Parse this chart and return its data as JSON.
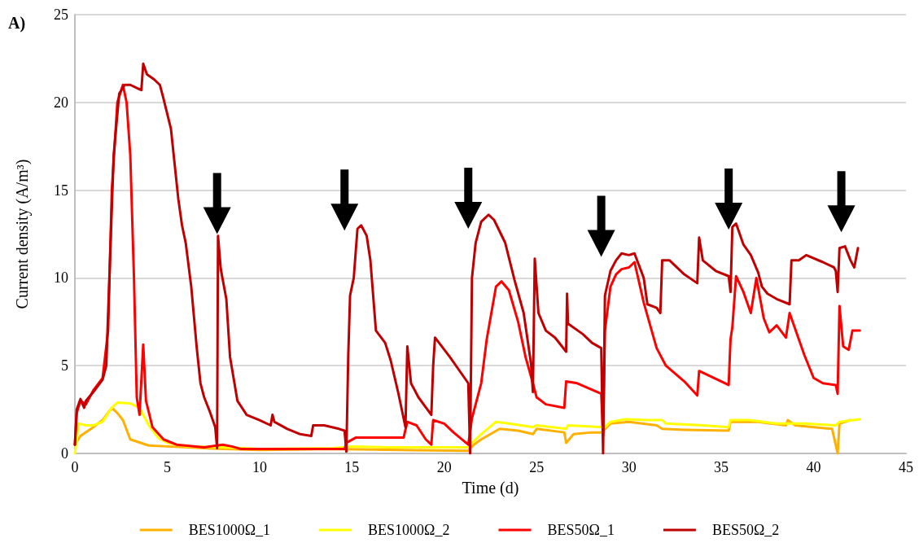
{
  "chart_data": {
    "type": "line",
    "xlabel": "Time (d)",
    "ylabel": "Current density (A/m³)",
    "annotations": [
      "A)"
    ],
    "xlim": [
      0,
      45
    ],
    "xticks": [
      0,
      5,
      10,
      15,
      20,
      25,
      30,
      35,
      40,
      45
    ],
    "ylim": [
      0,
      25
    ],
    "yticks": [
      0,
      5,
      10,
      15,
      20,
      25
    ],
    "grid": "y",
    "legend": "bottom",
    "marker": "none",
    "line_style": "solid",
    "series": [
      {
        "name": "BES1000Ω_1",
        "color": "#ffb000",
        "x": [
          0,
          0.3,
          1,
          1.5,
          2,
          2.3,
          2.6,
          3,
          4,
          5,
          7,
          10,
          14,
          21.3,
          21.6,
          22,
          23,
          24,
          24.8,
          25,
          26.5,
          26.6,
          27,
          28,
          28.6,
          28.7,
          29,
          30,
          31.5,
          31.8,
          33,
          35.4,
          35.5,
          37,
          38.5,
          38.6,
          39,
          41,
          41.3,
          41.4,
          42
        ],
        "values": [
          0.5,
          1,
          1.5,
          1.9,
          2.6,
          2.3,
          1.9,
          0.8,
          0.45,
          0.4,
          0.3,
          0.2,
          0.25,
          0.15,
          0.5,
          0.8,
          1.4,
          1.3,
          1.1,
          1.4,
          1.2,
          0.6,
          1.1,
          1.2,
          1.2,
          1.4,
          1.7,
          1.8,
          1.6,
          1.4,
          1.35,
          1.3,
          1.8,
          1.8,
          1.6,
          1.9,
          1.6,
          1.4,
          0,
          1.7,
          1.9
        ]
      },
      {
        "name": "BES1000Ω_2",
        "color": "#ffff00",
        "x": [
          0,
          0.2,
          0.6,
          1,
          1.5,
          2,
          2.3,
          3,
          3.5,
          4,
          4.5,
          5,
          6,
          8,
          10,
          14,
          15,
          17,
          21.3,
          21.5,
          22,
          22.8,
          23.5,
          24.8,
          25,
          26.6,
          26.7,
          28.6,
          28.7,
          29,
          29.8,
          31,
          31.8,
          32,
          34,
          35.4,
          35.5,
          36.5,
          38,
          39.5,
          41.2,
          41.4,
          42.5
        ],
        "values": [
          0,
          1.7,
          1.6,
          1.6,
          1.8,
          2.6,
          2.9,
          2.85,
          2.6,
          1.6,
          0.9,
          0.6,
          0.4,
          0.35,
          0.25,
          0.3,
          0.4,
          0.35,
          0.35,
          0.6,
          1.1,
          1.8,
          1.7,
          1.5,
          1.6,
          1.4,
          1.6,
          1.5,
          1.5,
          1.8,
          1.95,
          1.9,
          1.9,
          1.7,
          1.6,
          1.5,
          1.9,
          1.9,
          1.7,
          1.7,
          1.6,
          1.8,
          1.95
        ]
      },
      {
        "name": "BES50Ω_1",
        "color": "#ff0000",
        "x": [
          0,
          0.1,
          0.3,
          0.6,
          1,
          1.5,
          1.8,
          2,
          2.3,
          2.6,
          2.8,
          3,
          3.2,
          3.35,
          3.5,
          3.7,
          3.85,
          4.2,
          4.8,
          5.5,
          7,
          8,
          8.5,
          9,
          12,
          14.6,
          14.7,
          15.2,
          17.8,
          18,
          18.5,
          19,
          19.3,
          19.4,
          20,
          20.5,
          21.3,
          21.5,
          22,
          22.3,
          22.8,
          23.1,
          23.5,
          24,
          24.4,
          24.8,
          25,
          25.5,
          26.5,
          26.6,
          27.2,
          28.5,
          28.6,
          28.7,
          29,
          29.3,
          29.6,
          30,
          30.3,
          30.8,
          31.5,
          32,
          33,
          33.7,
          33.8,
          35.4,
          35.5,
          35.6,
          35.8,
          36.2,
          36.6,
          36.9,
          37.3,
          37.6,
          38,
          38.5,
          38.7,
          39,
          39.5,
          40,
          40.5,
          41.2,
          41.3,
          41.4,
          41.6,
          41.9,
          42.1,
          42.5
        ],
        "values": [
          0.5,
          2.3,
          3,
          2.8,
          3.6,
          4.3,
          7,
          15,
          20,
          21,
          20,
          17,
          10,
          3.2,
          2.2,
          6.2,
          3,
          1.5,
          0.8,
          0.5,
          0.35,
          0.5,
          0.4,
          0.25,
          0.25,
          0.25,
          0.6,
          0.9,
          0.9,
          1.8,
          1.6,
          0.8,
          0.5,
          1.9,
          1.7,
          1.2,
          0.5,
          2,
          4,
          6.5,
          9.5,
          9.8,
          9.3,
          7.5,
          5.5,
          4,
          3.2,
          2.8,
          2.6,
          4.1,
          4,
          3.4,
          1,
          7,
          9.5,
          10.2,
          10.5,
          10.6,
          10.9,
          8.6,
          6,
          5,
          4.1,
          3.3,
          4.7,
          3.9,
          6.5,
          7.2,
          10.1,
          9.2,
          8,
          10,
          7.7,
          6.9,
          7.3,
          6.6,
          8,
          7.1,
          5.6,
          4.3,
          4,
          3.9,
          3.4,
          8.4,
          6.1,
          5.9,
          7,
          7
        ]
      },
      {
        "name": "BES50Ω_2",
        "color": "#c00000",
        "x": [
          0,
          0.1,
          0.3,
          0.5,
          0.6,
          1,
          1.5,
          1.7,
          1.9,
          2.1,
          2.4,
          2.7,
          3,
          3.4,
          3.6,
          3.7,
          3.9,
          4.3,
          4.6,
          4.8,
          5.2,
          5.6,
          5.8,
          6,
          6.3,
          6.6,
          6.8,
          7,
          7.3,
          7.6,
          7.7,
          7.75,
          7.9,
          8.2,
          8.4,
          8.8,
          9.3,
          10,
          10.6,
          10.7,
          10.8,
          11.5,
          12.2,
          12.8,
          12.9,
          13.5,
          14.3,
          14.6,
          14.7,
          14.8,
          14.9,
          15.1,
          15.3,
          15.5,
          15.8,
          16,
          16.3,
          16.8,
          17.1,
          17.5,
          17.8,
          17.9,
          18,
          18.2,
          18.6,
          19.3,
          19.4,
          19.5,
          20.3,
          21.3,
          21.4,
          21.5,
          21.7,
          22,
          22.4,
          22.7,
          23.3,
          23.8,
          24.3,
          24.7,
          24.8,
          24.9,
          25.1,
          25.5,
          26,
          26.6,
          26.65,
          26.7,
          27.5,
          28,
          28.5,
          28.6,
          28.7,
          29,
          29.3,
          29.6,
          30,
          30.3,
          30.8,
          31,
          31.5,
          31.7,
          31.8,
          32.2,
          33,
          33.7,
          33.8,
          34,
          34.7,
          35.4,
          35.5,
          35.6,
          35.8,
          36.2,
          36.6,
          37,
          37.2,
          37.5,
          38,
          38.7,
          38.8,
          39.2,
          39.6,
          40.5,
          41.1,
          41.2,
          41.3,
          41.4,
          41.7,
          42,
          42.2,
          42.4
        ],
        "values": [
          0.5,
          2.5,
          3.1,
          2.6,
          3,
          3.5,
          4.2,
          5,
          11,
          17,
          20.5,
          21,
          21,
          20.8,
          20.7,
          22.2,
          21.6,
          21.3,
          21,
          20.2,
          18.5,
          14.5,
          13,
          12,
          9.5,
          6,
          4,
          3.2,
          2.4,
          1.5,
          0.3,
          12.4,
          10.5,
          8.8,
          5.5,
          3,
          2.2,
          1.9,
          1.6,
          2.2,
          1.8,
          1.4,
          1.1,
          1,
          1.6,
          1.6,
          1.4,
          1.3,
          0.1,
          5.5,
          9,
          10,
          12.8,
          13,
          12.4,
          11,
          7,
          6.3,
          5.3,
          3.5,
          2,
          1.5,
          6.1,
          4,
          3.2,
          2.2,
          5,
          6.6,
          5.5,
          4,
          0,
          10,
          12,
          13.2,
          13.6,
          13.3,
          12,
          9.9,
          8,
          5.1,
          3.5,
          11.1,
          8,
          7,
          6.6,
          5.8,
          9.1,
          7.4,
          6.8,
          6.3,
          6,
          0,
          9,
          10.4,
          11,
          11.4,
          11.3,
          11.4,
          10,
          8.5,
          8.3,
          8,
          11,
          11,
          10.2,
          9.7,
          12.3,
          11,
          10.4,
          10.1,
          9.2,
          12.9,
          13.1,
          11.9,
          11.3,
          10.3,
          9.5,
          9.1,
          8.8,
          8.5,
          11,
          11,
          11.3,
          10.9,
          10.6,
          10.4,
          9.2,
          11.7,
          11.8,
          11,
          10.6,
          11.7
        ]
      }
    ]
  }
}
